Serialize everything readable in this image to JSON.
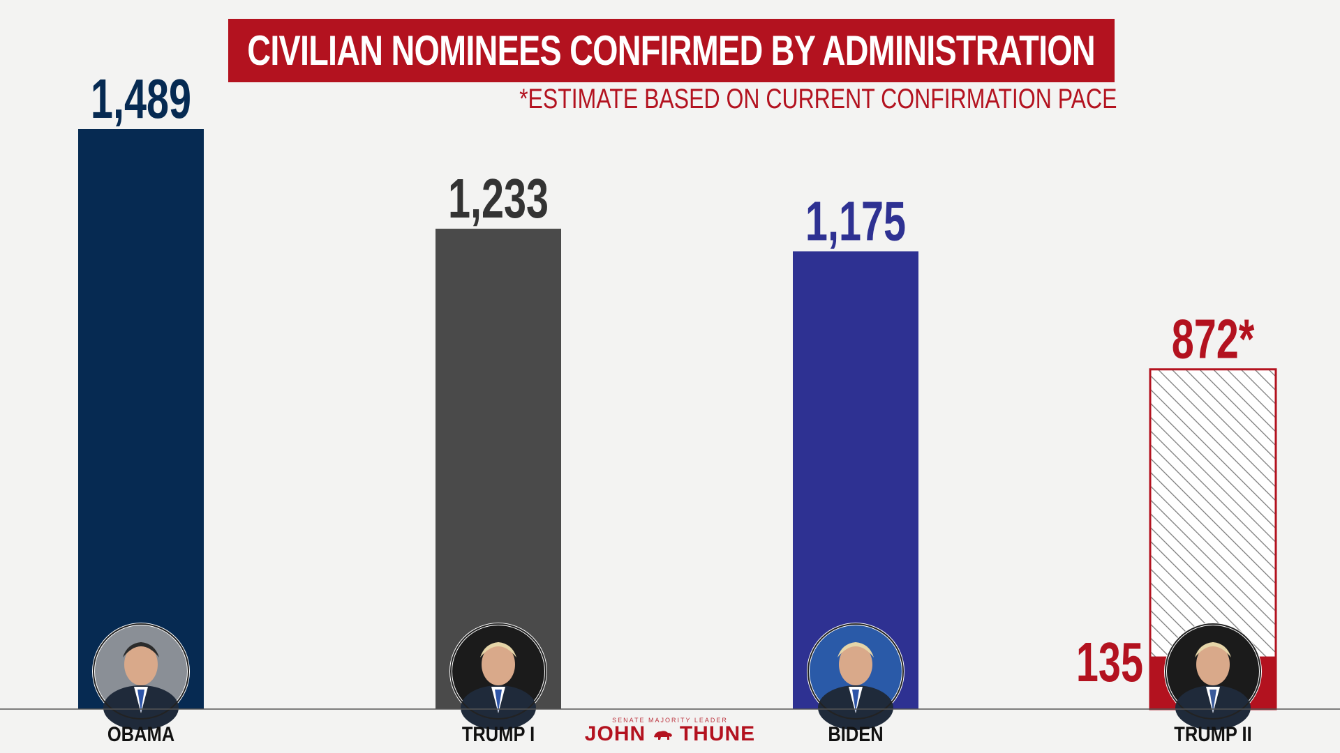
{
  "chart_data": {
    "type": "bar",
    "title": "CIVILIAN NOMINEES CONFIRMED BY ADMINISTRATION",
    "subtitle": "*ESTIMATE BASED ON CURRENT CONFIRMATION PACE",
    "categories": [
      "OBAMA",
      "TRUMP I",
      "BIDEN",
      "TRUMP II"
    ],
    "series": [
      {
        "values": [
          1489,
          1233,
          1175,
          135
        ]
      }
    ],
    "estimate": {
      "category": "TRUMP II",
      "value": 872,
      "label": "872*"
    },
    "value_labels": [
      "1,489",
      "1,233",
      "1,175",
      "135"
    ],
    "colors": [
      "#062a52",
      "#4a4a4a",
      "#2e3192",
      "#b3121f"
    ],
    "label_colors": [
      "#062a52",
      "#333333",
      "#2e3192",
      "#b3121f"
    ],
    "ylim": [
      0,
      1500
    ],
    "grid": false
  },
  "branding": {
    "kicker": "SENATE MAJORITY LEADER",
    "name_left": "JOHN",
    "name_right": "THUNE",
    "icon": "bison-icon"
  }
}
